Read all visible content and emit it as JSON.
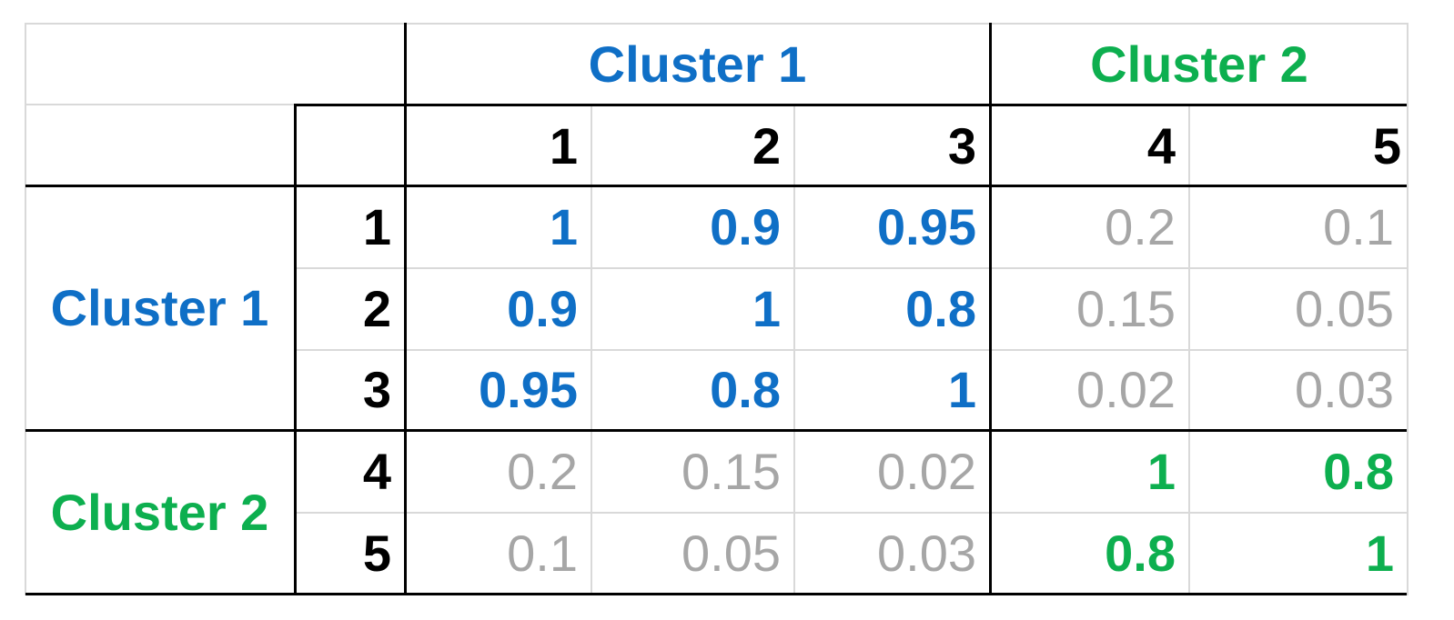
{
  "col_cluster_headers": [
    "Cluster 1",
    "Cluster 2"
  ],
  "row_cluster_headers": [
    "Cluster 1",
    "Cluster 2"
  ],
  "col_indices": [
    "1",
    "2",
    "3",
    "4",
    "5"
  ],
  "row_indices": [
    "1",
    "2",
    "3",
    "4",
    "5"
  ],
  "matrix": [
    [
      "1",
      "0.9",
      "0.95",
      "0.2",
      "0.1"
    ],
    [
      "0.9",
      "1",
      "0.8",
      "0.15",
      "0.05"
    ],
    [
      "0.95",
      "0.8",
      "1",
      "0.02",
      "0.03"
    ],
    [
      "0.2",
      "0.15",
      "0.02",
      "1",
      "0.8"
    ],
    [
      "0.1",
      "0.05",
      "0.03",
      "0.8",
      "1"
    ]
  ],
  "colors": {
    "cluster1": "#0F6FC6",
    "cluster2": "#0DAF4F",
    "off_cluster": "#A6A6A6",
    "index_labels": "#000000"
  }
}
